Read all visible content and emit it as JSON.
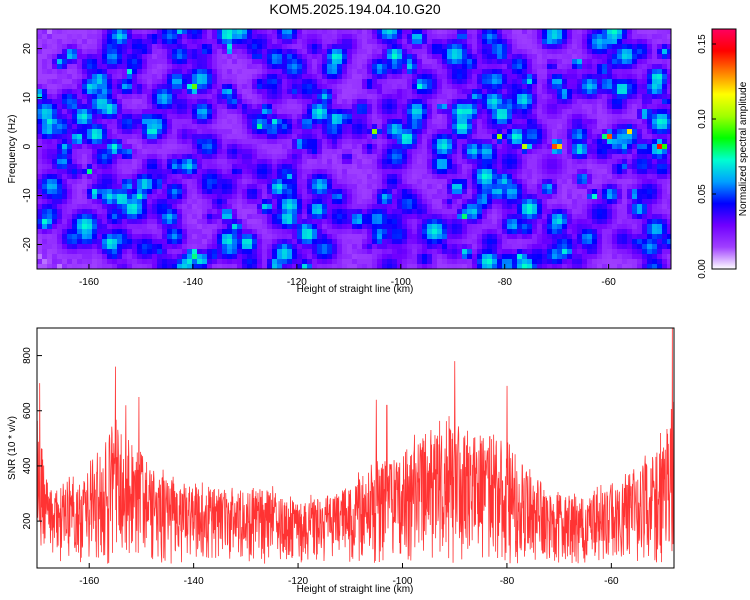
{
  "title": "KOM5.2025.194.04.10.G20",
  "chart_data": [
    {
      "type": "heatmap",
      "xlabel": "Height of straight line (km)",
      "ylabel": "Frequency (Hz)",
      "xlim": [
        -170,
        -48
      ],
      "ylim": [
        -25,
        24
      ],
      "x_ticks": [
        "-160",
        "-140",
        "-120",
        "-100",
        "-80",
        "-60"
      ],
      "y_ticks": [
        "-20",
        "-10",
        "0",
        "10",
        "20"
      ],
      "colorbar": {
        "label": "Normalized spectral amplitude",
        "range": [
          0.0,
          0.16
        ],
        "ticks": [
          "0.00",
          "0.05",
          "0.10",
          "0.15"
        ],
        "colors": [
          "#ffffff",
          "#a040ff",
          "#7000ff",
          "#0000ff",
          "#00a0ff",
          "#00ffd0",
          "#00ff00",
          "#a0ff00",
          "#ffff00",
          "#ff8000",
          "#ff0000",
          "#ff0060"
        ]
      },
      "background_level": 0.02,
      "peaks": [
        {
          "x": -140,
          "y": 12,
          "v": 0.11
        },
        {
          "x": -140,
          "y": -22,
          "v": 0.1
        },
        {
          "x": -105,
          "y": 3,
          "v": 0.1
        },
        {
          "x": -88,
          "y": -14,
          "v": 0.09
        },
        {
          "x": -81,
          "y": 2,
          "v": 0.1
        },
        {
          "x": -76,
          "y": 0,
          "v": 0.11
        },
        {
          "x": -70,
          "y": 0,
          "v": 0.16
        },
        {
          "x": -60,
          "y": 2,
          "v": 0.14
        },
        {
          "x": -56,
          "y": 3,
          "v": 0.12
        },
        {
          "x": -50,
          "y": 0,
          "v": 0.15
        },
        {
          "x": -152,
          "y": 15,
          "v": 0.08
        },
        {
          "x": -127,
          "y": 4,
          "v": 0.08
        },
        {
          "x": -98,
          "y": 16,
          "v": 0.08
        },
        {
          "x": -160,
          "y": -5,
          "v": 0.08
        },
        {
          "x": -63,
          "y": -10,
          "v": 0.08
        },
        {
          "x": -117,
          "y": -17,
          "v": 0.07
        },
        {
          "x": -133,
          "y": 20,
          "v": 0.08
        },
        {
          "x": -92,
          "y": 8,
          "v": 0.07
        },
        {
          "x": -66,
          "y": 17,
          "v": 0.08
        }
      ]
    },
    {
      "type": "line",
      "xlabel": "Height of straight line (km)",
      "ylabel": "SNR (10 * v/v)",
      "xlim": [
        -170,
        -48
      ],
      "ylim": [
        30,
        900
      ],
      "x_ticks": [
        "-160",
        "-140",
        "-120",
        "-100",
        "-80",
        "-60"
      ],
      "y_ticks": [
        "200",
        "400",
        "600",
        "800"
      ],
      "color": "#ff3333",
      "envelope": [
        {
          "x": -170,
          "v": 600
        },
        {
          "x": -168,
          "v": 320
        },
        {
          "x": -163,
          "v": 380
        },
        {
          "x": -158,
          "v": 460
        },
        {
          "x": -155,
          "v": 560
        },
        {
          "x": -151,
          "v": 470
        },
        {
          "x": -148,
          "v": 390
        },
        {
          "x": -143,
          "v": 340
        },
        {
          "x": -137,
          "v": 320
        },
        {
          "x": -132,
          "v": 310
        },
        {
          "x": -127,
          "v": 320
        },
        {
          "x": -122,
          "v": 290
        },
        {
          "x": -118,
          "v": 270
        },
        {
          "x": -113,
          "v": 300
        },
        {
          "x": -108,
          "v": 360
        },
        {
          "x": -103,
          "v": 430
        },
        {
          "x": -98,
          "v": 470
        },
        {
          "x": -93,
          "v": 530
        },
        {
          "x": -89,
          "v": 560
        },
        {
          "x": -85,
          "v": 520
        },
        {
          "x": -81,
          "v": 520
        },
        {
          "x": -77,
          "v": 420
        },
        {
          "x": -73,
          "v": 340
        },
        {
          "x": -69,
          "v": 300
        },
        {
          "x": -65,
          "v": 280
        },
        {
          "x": -61,
          "v": 320
        },
        {
          "x": -57,
          "v": 380
        },
        {
          "x": -52,
          "v": 420
        },
        {
          "x": -49,
          "v": 560
        },
        {
          "x": -48,
          "v": 700
        }
      ],
      "peaks": [
        {
          "x": -155,
          "y": 760
        },
        {
          "x": -90,
          "y": 780
        },
        {
          "x": -80,
          "y": 690
        },
        {
          "x": -169.5,
          "y": 700
        },
        {
          "x": -48.3,
          "y": 910
        },
        {
          "x": -150.5,
          "y": 650
        },
        {
          "x": -153,
          "y": 620
        },
        {
          "x": -105,
          "y": 640
        },
        {
          "x": -103,
          "y": 620
        }
      ]
    }
  ]
}
